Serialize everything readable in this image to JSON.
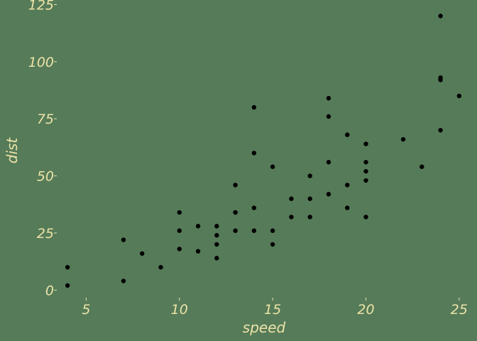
{
  "chart_data": {
    "type": "scatter",
    "title": "",
    "xlabel": "speed",
    "ylabel": "dist",
    "xlim": [
      3.5,
      25.5
    ],
    "ylim": [
      -3,
      127
    ],
    "xticks": [
      5,
      10,
      15,
      20,
      25
    ],
    "yticks": [
      0,
      25,
      50,
      75,
      100,
      125
    ],
    "grid": false,
    "legend": "none",
    "colors": {
      "background": "#567b58",
      "text": "#ece3a8",
      "points": "#000000"
    },
    "points": [
      [
        4,
        2
      ],
      [
        4,
        10
      ],
      [
        7,
        4
      ],
      [
        7,
        22
      ],
      [
        8,
        16
      ],
      [
        9,
        10
      ],
      [
        10,
        18
      ],
      [
        10,
        26
      ],
      [
        10,
        34
      ],
      [
        11,
        17
      ],
      [
        11,
        28
      ],
      [
        12,
        14
      ],
      [
        12,
        20
      ],
      [
        12,
        24
      ],
      [
        12,
        28
      ],
      [
        13,
        26
      ],
      [
        13,
        34
      ],
      [
        13,
        34
      ],
      [
        13,
        46
      ],
      [
        14,
        26
      ],
      [
        14,
        36
      ],
      [
        14,
        60
      ],
      [
        14,
        80
      ],
      [
        15,
        20
      ],
      [
        15,
        26
      ],
      [
        15,
        54
      ],
      [
        16,
        32
      ],
      [
        16,
        40
      ],
      [
        17,
        32
      ],
      [
        17,
        40
      ],
      [
        17,
        50
      ],
      [
        18,
        42
      ],
      [
        18,
        56
      ],
      [
        18,
        76
      ],
      [
        18,
        84
      ],
      [
        19,
        36
      ],
      [
        19,
        46
      ],
      [
        19,
        68
      ],
      [
        20,
        32
      ],
      [
        20,
        48
      ],
      [
        20,
        52
      ],
      [
        20,
        56
      ],
      [
        20,
        64
      ],
      [
        22,
        66
      ],
      [
        23,
        54
      ],
      [
        24,
        70
      ],
      [
        24,
        92
      ],
      [
        24,
        93
      ],
      [
        24,
        120
      ],
      [
        25,
        85
      ]
    ]
  }
}
